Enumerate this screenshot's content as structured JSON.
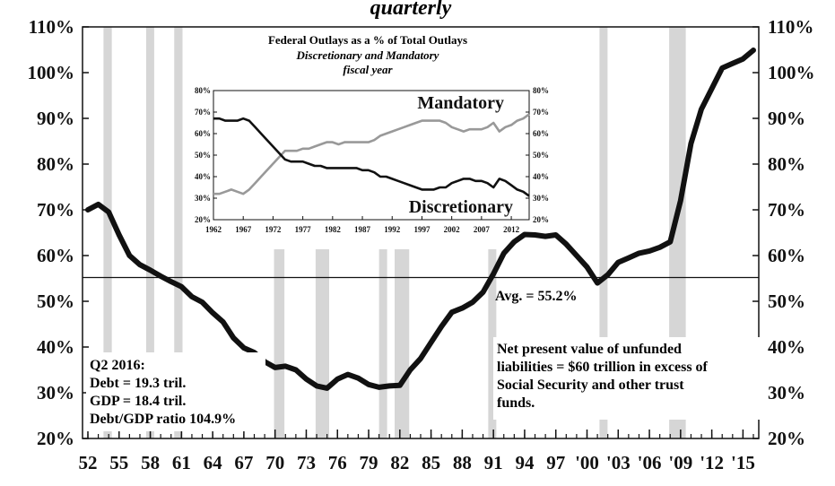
{
  "chart_data": [
    {
      "type": "line",
      "title": "quarterly",
      "x_unit": "year",
      "xlim": [
        1952,
        2016
      ],
      "ylim": [
        20,
        110
      ],
      "yticks": [
        "20%",
        "30%",
        "40%",
        "50%",
        "60%",
        "70%",
        "80%",
        "90%",
        "100%",
        "110%"
      ],
      "ytick_values": [
        20,
        30,
        40,
        50,
        60,
        70,
        80,
        90,
        100,
        110
      ],
      "xticks": [
        "52",
        "55",
        "58",
        "61",
        "64",
        "67",
        "70",
        "73",
        "76",
        "79",
        "82",
        "85",
        "88",
        "91",
        "94",
        "97",
        "'00",
        "'03",
        "'06",
        "'09",
        "'12",
        "'15"
      ],
      "xtick_values": [
        1952,
        1955,
        1958,
        1961,
        1964,
        1967,
        1970,
        1973,
        1976,
        1979,
        1982,
        1985,
        1988,
        1991,
        1994,
        1997,
        2000,
        2003,
        2006,
        2009,
        2012,
        2015
      ],
      "grid": false,
      "recessions": [
        [
          1953.5,
          1954.3
        ],
        [
          1957.6,
          1958.3
        ],
        [
          1960.3,
          1961.1
        ],
        [
          1969.9,
          1970.9
        ],
        [
          1973.9,
          1975.2
        ],
        [
          1980.0,
          1980.5
        ],
        [
          1981.5,
          1982.9
        ],
        [
          1990.5,
          1991.2
        ],
        [
          2001.2,
          2001.9
        ],
        [
          2007.9,
          2009.5
        ]
      ],
      "reference_lines": [
        {
          "y": 55.2,
          "label": "Avg. = 55.2%"
        }
      ],
      "series": [
        {
          "values": [
            [
              1952.0,
              70.0
            ],
            [
              1953.0,
              71.2
            ],
            [
              1954.0,
              69.5
            ],
            [
              1955.0,
              64.5
            ],
            [
              1956.0,
              60.0
            ],
            [
              1957.0,
              58.0
            ],
            [
              1958.0,
              56.8
            ],
            [
              1959.0,
              55.5
            ],
            [
              1960.0,
              54.3
            ],
            [
              1961.0,
              53.2
            ],
            [
              1962.0,
              51.0
            ],
            [
              1963.0,
              49.8
            ],
            [
              1964.0,
              47.5
            ],
            [
              1965.0,
              45.5
            ],
            [
              1966.0,
              42.0
            ],
            [
              1967.0,
              39.8
            ],
            [
              1968.0,
              38.8
            ],
            [
              1969.0,
              36.8
            ],
            [
              1970.0,
              35.5
            ],
            [
              1971.0,
              35.8
            ],
            [
              1972.0,
              35.0
            ],
            [
              1973.0,
              33.0
            ],
            [
              1974.0,
              31.5
            ],
            [
              1975.0,
              31.0
            ],
            [
              1976.0,
              33.0
            ],
            [
              1977.0,
              34.0
            ],
            [
              1978.0,
              33.2
            ],
            [
              1979.0,
              31.8
            ],
            [
              1980.0,
              31.2
            ],
            [
              1981.0,
              31.5
            ],
            [
              1982.0,
              31.6
            ],
            [
              1983.0,
              35.0
            ],
            [
              1984.0,
              37.5
            ],
            [
              1985.0,
              41.0
            ],
            [
              1986.0,
              44.5
            ],
            [
              1987.0,
              47.6
            ],
            [
              1988.0,
              48.5
            ],
            [
              1989.0,
              49.8
            ],
            [
              1990.0,
              52.0
            ],
            [
              1991.0,
              56.0
            ],
            [
              1992.0,
              60.5
            ],
            [
              1993.0,
              63.0
            ],
            [
              1994.0,
              64.6
            ],
            [
              1995.0,
              64.5
            ],
            [
              1996.0,
              64.2
            ],
            [
              1997.0,
              64.5
            ],
            [
              1998.0,
              62.5
            ],
            [
              1999.0,
              60.0
            ],
            [
              2000.0,
              57.5
            ],
            [
              2001.0,
              54.0
            ],
            [
              2002.0,
              55.8
            ],
            [
              2003.0,
              58.5
            ],
            [
              2004.0,
              59.5
            ],
            [
              2005.0,
              60.5
            ],
            [
              2006.0,
              61.0
            ],
            [
              2007.0,
              61.8
            ],
            [
              2008.0,
              63.0
            ],
            [
              2009.0,
              72.0
            ],
            [
              2010.0,
              84.5
            ],
            [
              2011.0,
              92.0
            ],
            [
              2012.0,
              96.5
            ],
            [
              2013.0,
              101.0
            ],
            [
              2014.0,
              102.0
            ],
            [
              2015.0,
              103.0
            ],
            [
              2016.0,
              104.9
            ]
          ]
        }
      ],
      "annotations": [
        {
          "lines": [
            "Q2 2016:",
            "Debt = 19.3 tril.",
            "GDP = 18.4 tril.",
            "Debt/GDP ratio 104.9%"
          ]
        },
        {
          "lines": [
            "Net present value of unfunded",
            "liabilities = $60 trillion in excess of",
            "Social Security and other trust",
            "funds."
          ]
        }
      ]
    },
    {
      "type": "line",
      "title": "Federal Outlays as a % of Total Outlays",
      "subtitle": [
        "Discretionary and Mandatory",
        "fiscal year"
      ],
      "xlim": [
        1962,
        2015
      ],
      "ylim": [
        20,
        80
      ],
      "yticks": [
        "20%",
        "30%",
        "40%",
        "50%",
        "60%",
        "70%",
        "80%"
      ],
      "ytick_values": [
        20,
        30,
        40,
        50,
        60,
        70,
        80
      ],
      "xticks": [
        "1962",
        "1967",
        "1972",
        "1977",
        "1982",
        "1987",
        "1992",
        "1997",
        "2002",
        "2007",
        "2012"
      ],
      "xtick_values": [
        1962,
        1967,
        1972,
        1977,
        1982,
        1987,
        1992,
        1997,
        2002,
        2007,
        2012
      ],
      "grid": false,
      "series": [
        {
          "name": "Mandatory",
          "color": "#999999",
          "values": [
            [
              1962,
              32
            ],
            [
              1963,
              32
            ],
            [
              1964,
              33
            ],
            [
              1965,
              34
            ],
            [
              1966,
              33
            ],
            [
              1967,
              32
            ],
            [
              1968,
              34
            ],
            [
              1969,
              37
            ],
            [
              1970,
              40
            ],
            [
              1971,
              43
            ],
            [
              1972,
              46
            ],
            [
              1973,
              49
            ],
            [
              1974,
              52
            ],
            [
              1975,
              52
            ],
            [
              1976,
              52
            ],
            [
              1977,
              53
            ],
            [
              1978,
              53
            ],
            [
              1979,
              54
            ],
            [
              1980,
              55
            ],
            [
              1981,
              56
            ],
            [
              1982,
              56
            ],
            [
              1983,
              55
            ],
            [
              1984,
              56
            ],
            [
              1985,
              56
            ],
            [
              1986,
              56
            ],
            [
              1987,
              56
            ],
            [
              1988,
              56
            ],
            [
              1989,
              57
            ],
            [
              1990,
              59
            ],
            [
              1991,
              60
            ],
            [
              1992,
              61
            ],
            [
              1993,
              62
            ],
            [
              1994,
              63
            ],
            [
              1995,
              64
            ],
            [
              1996,
              65
            ],
            [
              1997,
              66
            ],
            [
              1998,
              66
            ],
            [
              1999,
              66
            ],
            [
              2000,
              66
            ],
            [
              2001,
              65
            ],
            [
              2002,
              63
            ],
            [
              2003,
              62
            ],
            [
              2004,
              61
            ],
            [
              2005,
              62
            ],
            [
              2006,
              62
            ],
            [
              2007,
              62
            ],
            [
              2008,
              63
            ],
            [
              2009,
              65
            ],
            [
              2010,
              61
            ],
            [
              2011,
              63
            ],
            [
              2012,
              64
            ],
            [
              2013,
              66
            ],
            [
              2014,
              67
            ],
            [
              2015,
              69
            ]
          ]
        },
        {
          "name": "Discretionary",
          "color": "#111111",
          "values": [
            [
              1962,
              67
            ],
            [
              1963,
              67
            ],
            [
              1964,
              66
            ],
            [
              1965,
              66
            ],
            [
              1966,
              66
            ],
            [
              1967,
              67
            ],
            [
              1968,
              66
            ],
            [
              1969,
              63
            ],
            [
              1970,
              60
            ],
            [
              1971,
              57
            ],
            [
              1972,
              54
            ],
            [
              1973,
              51
            ],
            [
              1974,
              48
            ],
            [
              1975,
              47
            ],
            [
              1976,
              47
            ],
            [
              1977,
              47
            ],
            [
              1978,
              46
            ],
            [
              1979,
              45
            ],
            [
              1980,
              45
            ],
            [
              1981,
              44
            ],
            [
              1982,
              44
            ],
            [
              1983,
              44
            ],
            [
              1984,
              44
            ],
            [
              1985,
              44
            ],
            [
              1986,
              44
            ],
            [
              1987,
              43
            ],
            [
              1988,
              43
            ],
            [
              1989,
              42
            ],
            [
              1990,
              40
            ],
            [
              1991,
              40
            ],
            [
              1992,
              39
            ],
            [
              1993,
              38
            ],
            [
              1994,
              37
            ],
            [
              1995,
              36
            ],
            [
              1996,
              35
            ],
            [
              1997,
              34
            ],
            [
              1998,
              34
            ],
            [
              1999,
              34
            ],
            [
              2000,
              35
            ],
            [
              2001,
              35
            ],
            [
              2002,
              37
            ],
            [
              2003,
              38
            ],
            [
              2004,
              39
            ],
            [
              2005,
              39
            ],
            [
              2006,
              38
            ],
            [
              2007,
              38
            ],
            [
              2008,
              37
            ],
            [
              2009,
              35
            ],
            [
              2010,
              39
            ],
            [
              2011,
              38
            ],
            [
              2012,
              36
            ],
            [
              2013,
              34
            ],
            [
              2014,
              33
            ],
            [
              2015,
              31
            ]
          ]
        }
      ]
    }
  ]
}
